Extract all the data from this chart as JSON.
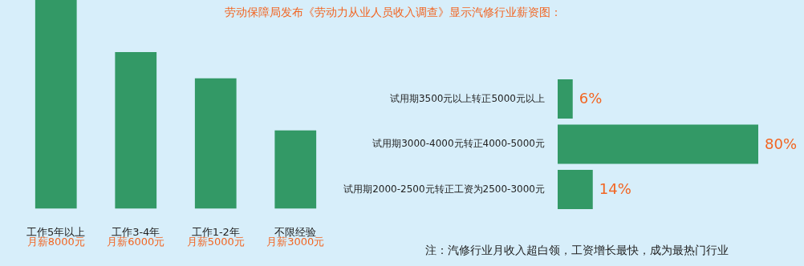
{
  "chart_data": [
    {
      "type": "bar",
      "title": "劳动保障局发布《劳动力从业人员收入调查》显示汽修行业薪资图：",
      "categories": [
        "工作5年以上",
        "工作3-4年",
        "工作1-2年",
        "不限经验"
      ],
      "values": [
        8000,
        6000,
        5000,
        3000
      ],
      "color": "#339966",
      "value_labels": [
        "月薪8000元",
        "月薪6000元",
        "月薪5000元",
        "月薪3000元"
      ]
    },
    {
      "type": "bar",
      "orientation": "horizontal",
      "categories": [
        "试用期3500元以上转正5000元以上",
        "试用期3000-4000元转正4000-5000元",
        "试用期2000-2500元转正工资为2500-3000元"
      ],
      "values": [
        6,
        80,
        14
      ],
      "color": "#339966",
      "value_labels": [
        "6%",
        "80%",
        "14%"
      ],
      "annotations": [
        "注：汽修行业月收入超白领，工资增长最快，成为最热门行业"
      ]
    }
  ]
}
